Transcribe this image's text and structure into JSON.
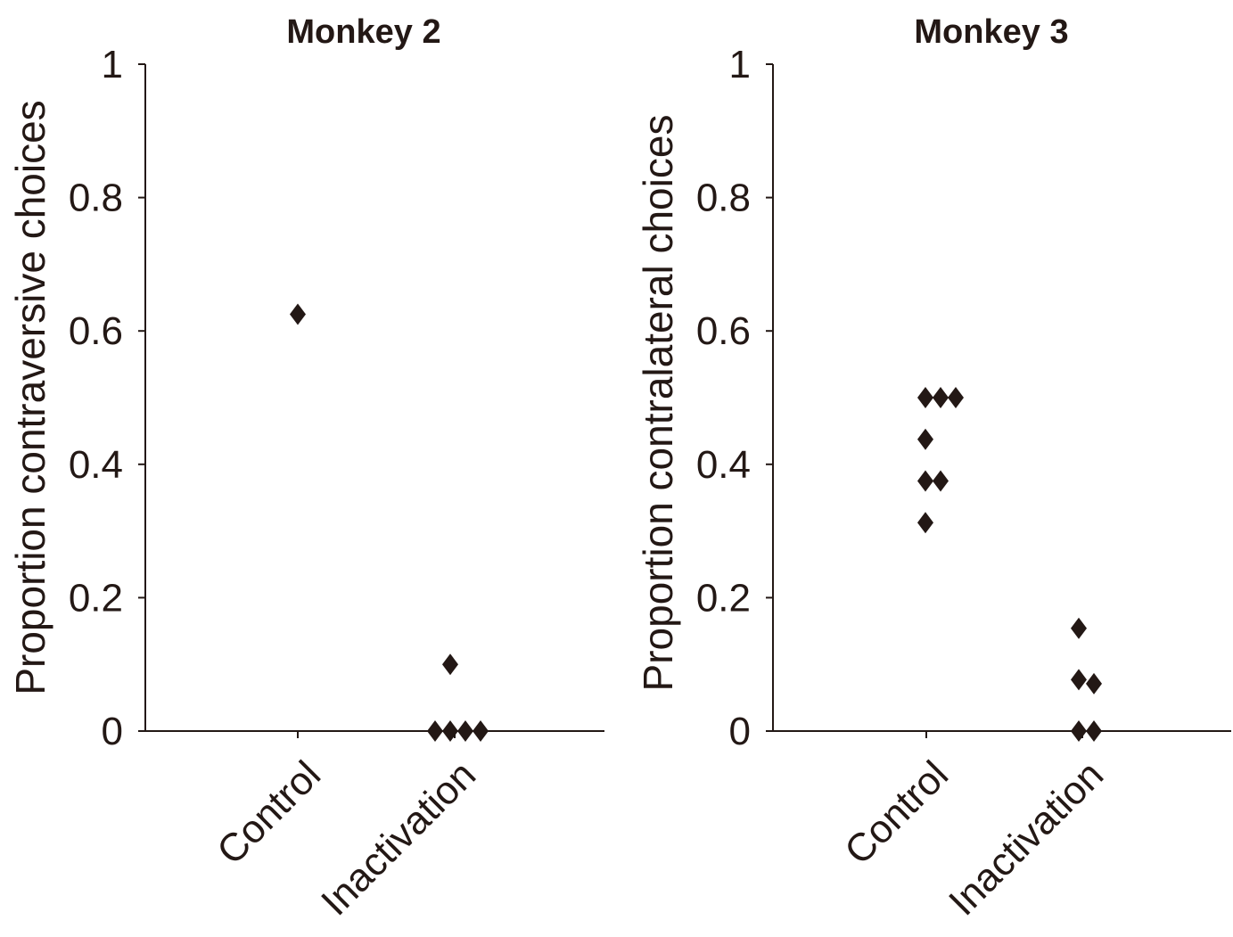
{
  "colors": {
    "ink": "#231815",
    "background": "#ffffff"
  },
  "chart_data": [
    {
      "type": "scatter",
      "title": "Monkey 2",
      "xlabel": "",
      "ylabel": "Proportion contraversive choices",
      "categories": [
        "Control",
        "Inactivation"
      ],
      "ylim": [
        0,
        1
      ],
      "yticks": [
        "0",
        "0.2",
        "0.4",
        "0.6",
        "0.8",
        "1"
      ],
      "grid": false,
      "legend": "none",
      "marker": "diamond",
      "series": [
        {
          "points": [
            {
              "category": "Control",
              "y": 0.625
            },
            {
              "category": "Inactivation",
              "y": 0.1
            },
            {
              "category": "Inactivation",
              "y": 0.0
            },
            {
              "category": "Inactivation",
              "y": 0.0
            },
            {
              "category": "Inactivation",
              "y": 0.0
            },
            {
              "category": "Inactivation",
              "y": 0.0
            }
          ]
        }
      ]
    },
    {
      "type": "scatter",
      "title": "Monkey 3",
      "xlabel": "",
      "ylabel": "Proportion contralateral choices",
      "categories": [
        "Control",
        "Inactivation"
      ],
      "ylim": [
        0,
        1
      ],
      "yticks": [
        "0",
        "0.2",
        "0.4",
        "0.6",
        "0.8",
        "1"
      ],
      "grid": false,
      "legend": "none",
      "marker": "diamond",
      "series": [
        {
          "points": [
            {
              "category": "Control",
              "y": 0.5
            },
            {
              "category": "Control",
              "y": 0.5
            },
            {
              "category": "Control",
              "y": 0.5
            },
            {
              "category": "Control",
              "y": 0.4375
            },
            {
              "category": "Control",
              "y": 0.375
            },
            {
              "category": "Control",
              "y": 0.375
            },
            {
              "category": "Control",
              "y": 0.3125
            },
            {
              "category": "Inactivation",
              "y": 0.154
            },
            {
              "category": "Inactivation",
              "y": 0.077
            },
            {
              "category": "Inactivation",
              "y": 0.071
            },
            {
              "category": "Inactivation",
              "y": 0.0
            },
            {
              "category": "Inactivation",
              "y": 0.0
            }
          ]
        }
      ]
    }
  ]
}
